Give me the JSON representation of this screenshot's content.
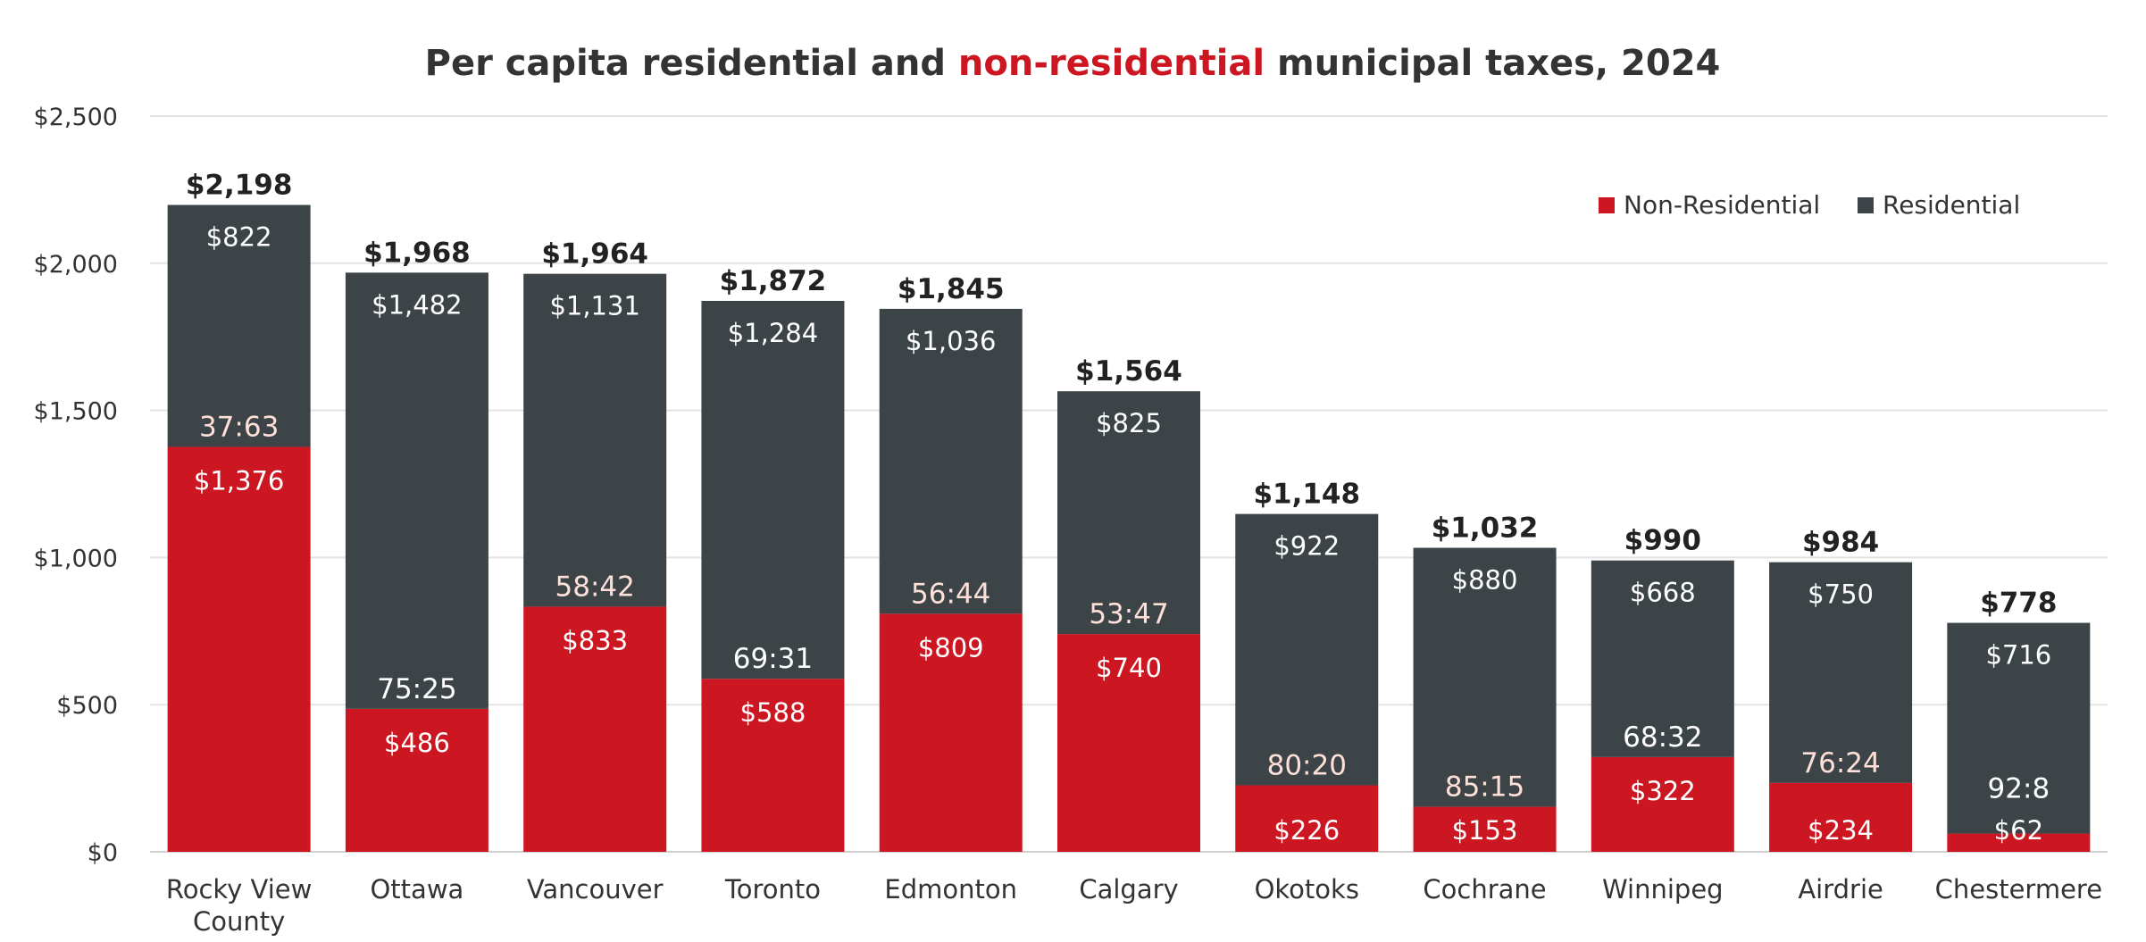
{
  "colors": {
    "non_residential": "#cc1621",
    "residential": "#3d4448",
    "title_accent": "#cc1621",
    "title_text": "#333333",
    "ratio_on_red": "#ffe0d8",
    "ratio_on_dark": "#ffffff"
  },
  "chart_data": {
    "type": "bar",
    "stacked": true,
    "title_parts": [
      "Per capita residential and ",
      "non-residential",
      " municipal taxes, 2024"
    ],
    "xlabel": "",
    "ylabel": "",
    "ylim": [
      0,
      2500
    ],
    "yticks": [
      0,
      500,
      1000,
      1500,
      2000,
      2500
    ],
    "ytick_labels": [
      "$0",
      "$500",
      "$1,000",
      "$1,500",
      "$2,000",
      "$2,500"
    ],
    "grid": true,
    "legend_position": "top-right",
    "categories": [
      [
        "Rocky View",
        "County"
      ],
      [
        "Ottawa"
      ],
      [
        "Vancouver"
      ],
      [
        "Toronto"
      ],
      [
        "Edmonton"
      ],
      [
        "Calgary"
      ],
      [
        "Okotoks"
      ],
      [
        "Cochrane"
      ],
      [
        "Winnipeg"
      ],
      [
        "Airdrie"
      ],
      [
        "Chestermere"
      ]
    ],
    "series": [
      {
        "name": "Non-Residential",
        "values": [
          1376,
          486,
          833,
          588,
          809,
          740,
          226,
          153,
          322,
          234,
          62
        ],
        "labels": [
          "$1,376",
          "$486",
          "$833",
          "$588",
          "$809",
          "$740",
          "$226",
          "$153",
          "$322",
          "$234",
          "$62"
        ]
      },
      {
        "name": "Residential",
        "values": [
          822,
          1482,
          1131,
          1284,
          1036,
          825,
          922,
          880,
          668,
          750,
          716
        ],
        "labels": [
          "$822",
          "$1,482",
          "$1,131",
          "$1,284",
          "$1,036",
          "$825",
          "$922",
          "$880",
          "$668",
          "$750",
          "$716"
        ]
      }
    ],
    "totals": [
      2198,
      1968,
      1964,
      1872,
      1845,
      1564,
      1148,
      1032,
      990,
      984,
      778
    ],
    "total_labels": [
      "$2,198",
      "$1,968",
      "$1,964",
      "$1,872",
      "$1,845",
      "$1,564",
      "$1,148",
      "$1,032",
      "$990",
      "$984",
      "$778"
    ],
    "ratios": [
      "37:63",
      "75:25",
      "58:42",
      "69:31",
      "56:44",
      "53:47",
      "80:20",
      "85:15",
      "68:32",
      "76:24",
      "92:8"
    ],
    "ratio_on_red": [
      true,
      false,
      true,
      false,
      true,
      true,
      true,
      true,
      false,
      true,
      false
    ]
  }
}
